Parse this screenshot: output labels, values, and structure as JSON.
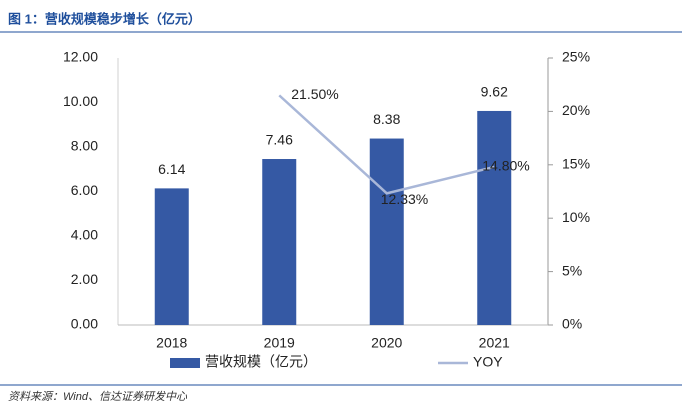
{
  "chart_data": {
    "type": "bar",
    "title": "图 1：营收规模稳步增长（亿元）",
    "source": "资料来源：Wind、信达证券研发中心",
    "categories": [
      "2018",
      "2019",
      "2020",
      "2021"
    ],
    "series": [
      {
        "name": "营收规模（亿元）",
        "type": "bar",
        "color": "#3559a4",
        "values": [
          6.14,
          7.46,
          8.38,
          9.62
        ]
      },
      {
        "name": "YOY",
        "type": "line",
        "axis": "y2",
        "color": "#a9b7d8",
        "values": [
          null,
          21.5,
          12.33,
          14.8
        ],
        "value_labels": [
          null,
          "21.50%",
          "12.33%",
          "14.80%"
        ]
      }
    ],
    "ylim": [
      0,
      12
    ],
    "yticks": [
      {
        "value": 0,
        "label": "0.00"
      },
      {
        "value": 2,
        "label": "2.00"
      },
      {
        "value": 4,
        "label": "4.00"
      },
      {
        "value": 6,
        "label": "6.00"
      },
      {
        "value": 8,
        "label": "8.00"
      },
      {
        "value": 10,
        "label": "10.00"
      },
      {
        "value": 12,
        "label": "12.00"
      }
    ],
    "y2lim": [
      0,
      25
    ],
    "y2ticks": [
      {
        "value": 0,
        "label": "0%"
      },
      {
        "value": 5,
        "label": "5%"
      },
      {
        "value": 10,
        "label": "10%"
      },
      {
        "value": 15,
        "label": "15%"
      },
      {
        "value": 20,
        "label": "20%"
      },
      {
        "value": 25,
        "label": "25%"
      }
    ],
    "grid": false,
    "legend": "bottom"
  }
}
